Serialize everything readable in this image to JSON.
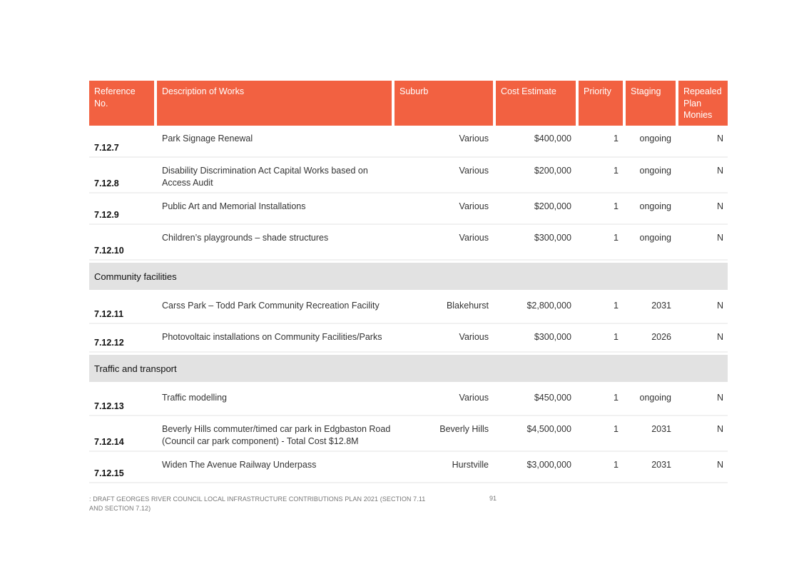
{
  "table": {
    "headers": [
      "Reference No.",
      "Description of Works",
      "Suburb",
      "Cost Estimate",
      "Priority",
      "Staging",
      "Repealed Plan Monies"
    ],
    "groups": [
      {
        "title": "",
        "rows": [
          {
            "ref": "7.12.7",
            "desc": "Park Signage Renewal",
            "suburb": "Various",
            "cost": "$400,000",
            "priority": "1",
            "staging": "ongoing",
            "repealed": "N"
          },
          {
            "ref": "7.12.8",
            "desc": "Disability Discrimination Act Capital Works based on Access Audit",
            "suburb": "Various",
            "cost": "$200,000",
            "priority": "1",
            "staging": "ongoing",
            "repealed": "N"
          },
          {
            "ref": "7.12.9",
            "desc": "Public Art and Memorial Installations",
            "suburb": "Various",
            "cost": "$200,000",
            "priority": "1",
            "staging": "ongoing",
            "repealed": "N"
          },
          {
            "ref": "7.12.10",
            "desc": "Children’s playgrounds – shade structures",
            "suburb": "Various",
            "cost": "$300,000",
            "priority": "1",
            "staging": "ongoing",
            "repealed": "N"
          }
        ]
      },
      {
        "title": "Community facilities",
        "rows": [
          {
            "ref": "7.12.11",
            "desc": "Carss Park – Todd Park Community Recreation Facility",
            "suburb": "Blakehurst",
            "cost": "$2,800,000",
            "priority": "1",
            "staging": "2031",
            "repealed": "N"
          },
          {
            "ref": "7.12.12",
            "desc": "Photovoltaic installations on Community Facilities/Parks",
            "suburb": "Various",
            "cost": "$300,000",
            "priority": "1",
            "staging": "2026",
            "repealed": "N"
          }
        ]
      },
      {
        "title": "Traffic and transport",
        "rows": [
          {
            "ref": "7.12.13",
            "desc": "Traffic modelling",
            "suburb": "Various",
            "cost": "$450,000",
            "priority": "1",
            "staging": "ongoing",
            "repealed": "N"
          },
          {
            "ref": "7.12.14",
            "desc": "Beverly Hills commuter/timed car park in Edgbaston Road (Council car park component) - Total Cost $12.8M",
            "suburb": "Beverly Hills",
            "cost": "$4,500,000",
            "priority": "1",
            "staging": "2031",
            "repealed": "N"
          },
          {
            "ref": "7.12.15",
            "desc": "Widen The Avenue Railway Underpass",
            "suburb": "Hurstville",
            "cost": "$3,000,000",
            "priority": "1",
            "staging": "2031",
            "repealed": "N"
          }
        ]
      }
    ]
  },
  "footer": {
    "text": ": DRAFT GEORGES RIVER COUNCIL LOCAL INFRASTRUCTURE CONTRIBUTIONS PLAN 2021 (SECTION 7.11 AND SECTION 7.12)",
    "page_number": "91"
  }
}
